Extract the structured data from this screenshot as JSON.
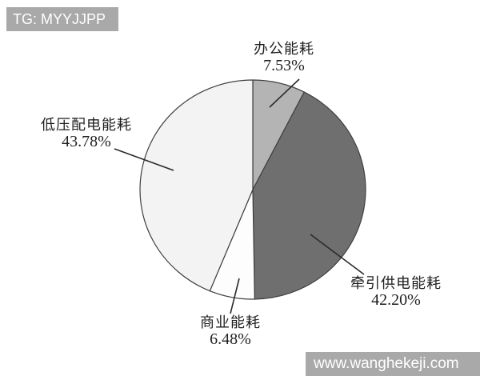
{
  "watermarks": {
    "top_left": "TG: MYYJJPP",
    "bottom_right": "www.wanghekeji.com"
  },
  "chart_data": {
    "type": "pie",
    "title": "",
    "start_angle_deg": 0,
    "direction": "clockwise",
    "stroke_color": "#3f3f3f",
    "leader_line_color": "#2a2a2a",
    "slices": [
      {
        "label": "办公能耗",
        "value": 7.53,
        "pct_label": "7.53%",
        "color": "#b4b4b4"
      },
      {
        "label": "牵引供电能耗",
        "value": 42.2,
        "pct_label": "42.20%",
        "color": "#6f6f6f"
      },
      {
        "label": "商业能耗",
        "value": 6.48,
        "pct_label": "6.48%",
        "color": "#fdfdfd"
      },
      {
        "label": "低压配电能耗",
        "value": 43.78,
        "pct_label": "43.78%",
        "color": "#f3f3f3"
      }
    ]
  }
}
